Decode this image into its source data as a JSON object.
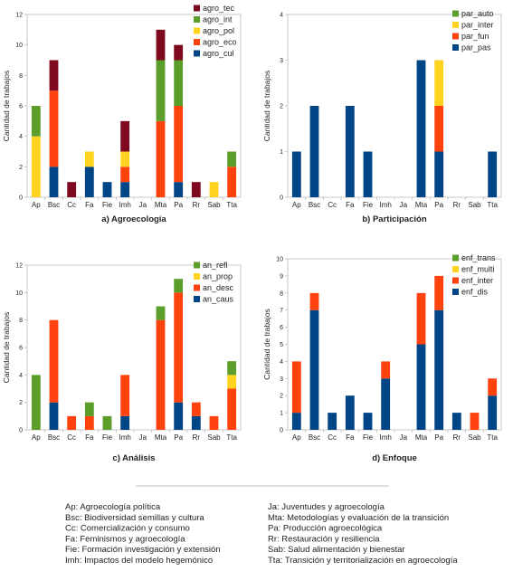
{
  "colors": {
    "tec": "#7f0a1f",
    "int": "#5c9e2c",
    "pol": "#ffd320",
    "eco": "#ff420e",
    "cul": "#004586",
    "auto": "#5c9e2c",
    "inter": "#ffd320",
    "fun": "#ff420e",
    "pas": "#004586",
    "refl": "#5c9e2c",
    "prop": "#ffd320",
    "desc": "#ff420e",
    "caus": "#004586",
    "trans": "#5c9e2c",
    "multi": "#ffd320",
    "einter": "#ff420e",
    "dis": "#004586"
  },
  "chart_data": [
    {
      "type": "bar",
      "stacked": true,
      "title": "a) Agroecología",
      "ylabel": "Cantidad de trabajos",
      "xlabel": "",
      "ylim": [
        0,
        12
      ],
      "yticks": [
        0,
        2,
        4,
        6,
        8,
        10,
        12
      ],
      "grid": false,
      "legend": "top-right",
      "categories": [
        "Ap",
        "Bsc",
        "Cc",
        "Fa",
        "Fie",
        "Imh",
        "Ja",
        "Mta",
        "Pa",
        "Rr",
        "Sab",
        "Tta"
      ],
      "series": [
        {
          "name": "agro_tec",
          "color": "tec",
          "values": [
            0,
            2,
            1,
            0,
            0,
            2,
            0,
            2,
            1,
            1,
            0,
            0
          ]
        },
        {
          "name": "agro_int",
          "color": "int",
          "values": [
            2,
            0,
            0,
            0,
            0,
            0,
            0,
            4,
            3,
            0,
            0,
            1
          ]
        },
        {
          "name": "agro_pol",
          "color": "pol",
          "values": [
            4,
            0,
            0,
            1,
            0,
            1,
            0,
            0,
            0,
            0,
            1,
            0
          ]
        },
        {
          "name": "agro_eco",
          "color": "eco",
          "values": [
            0,
            5,
            0,
            0,
            0,
            1,
            0,
            5,
            5,
            0,
            0,
            2
          ]
        },
        {
          "name": "agro_cul",
          "color": "cul",
          "values": [
            0,
            2,
            0,
            2,
            1,
            1,
            0,
            0,
            1,
            0,
            0,
            0
          ]
        }
      ]
    },
    {
      "type": "bar",
      "stacked": true,
      "title": "b) Participación",
      "ylabel": "Cantidad de trabajos",
      "xlabel": "",
      "ylim": [
        0,
        4
      ],
      "yticks": [
        0,
        1,
        2,
        3,
        4
      ],
      "grid": false,
      "legend": "top-right",
      "categories": [
        "Ap",
        "Bsc",
        "Cc",
        "Fa",
        "Fie",
        "Imh",
        "Ja",
        "Mta",
        "Pa",
        "Rr",
        "Sab",
        "Tta"
      ],
      "series": [
        {
          "name": "par_auto",
          "color": "auto",
          "values": [
            0,
            0,
            0,
            0,
            0,
            0,
            0,
            0,
            0,
            0,
            0,
            0
          ]
        },
        {
          "name": "par_inter",
          "color": "inter",
          "values": [
            0,
            0,
            0,
            0,
            0,
            0,
            0,
            0,
            1,
            0,
            0,
            0
          ]
        },
        {
          "name": "par_fun",
          "color": "fun",
          "values": [
            0,
            0,
            0,
            0,
            0,
            0,
            0,
            0,
            1,
            0,
            0,
            0
          ]
        },
        {
          "name": "par_pas",
          "color": "pas",
          "values": [
            1,
            2,
            0,
            2,
            1,
            0,
            0,
            3,
            1,
            0,
            0,
            1
          ]
        }
      ]
    },
    {
      "type": "bar",
      "stacked": true,
      "title": "c) Análisis",
      "ylabel": "Cantidad de trabajos",
      "xlabel": "",
      "ylim": [
        0,
        12
      ],
      "yticks": [
        0,
        2,
        4,
        6,
        8,
        10,
        12
      ],
      "grid": false,
      "legend": "top-right",
      "categories": [
        "Ap",
        "Bsc",
        "Cc",
        "Fa",
        "Fie",
        "Imh",
        "Ja",
        "Mta",
        "Pa",
        "Rr",
        "Sab",
        "Tta"
      ],
      "series": [
        {
          "name": "an_refl",
          "color": "refl",
          "values": [
            4,
            0,
            0,
            1,
            1,
            0,
            0,
            1,
            1,
            0,
            0,
            1
          ]
        },
        {
          "name": "an_prop",
          "color": "prop",
          "values": [
            0,
            0,
            0,
            0,
            0,
            0,
            0,
            0,
            0,
            0,
            0,
            1
          ]
        },
        {
          "name": "an_desc",
          "color": "desc",
          "values": [
            0,
            6,
            1,
            1,
            0,
            3,
            0,
            8,
            8,
            1,
            1,
            3
          ]
        },
        {
          "name": "an_caus",
          "color": "caus",
          "values": [
            0,
            2,
            0,
            0,
            0,
            1,
            0,
            0,
            2,
            1,
            0,
            0
          ]
        }
      ]
    },
    {
      "type": "bar",
      "stacked": true,
      "title": "d) Enfoque",
      "ylabel": "Cantidad de trabajos",
      "xlabel": "",
      "ylim": [
        0,
        10
      ],
      "yticks": [
        0,
        1,
        2,
        3,
        4,
        5,
        6,
        7,
        8,
        9,
        10
      ],
      "grid": false,
      "legend": "top-right",
      "categories": [
        "Ap",
        "Bsc",
        "Cc",
        "Fa",
        "Fie",
        "Imh",
        "Ja",
        "Mta",
        "Pa",
        "Rr",
        "Sab",
        "Tta"
      ],
      "series": [
        {
          "name": "enf_trans",
          "color": "trans",
          "values": [
            0,
            0,
            0,
            0,
            0,
            0,
            0,
            0,
            0,
            0,
            0,
            0
          ]
        },
        {
          "name": "enf_multi",
          "color": "multi",
          "values": [
            0,
            0,
            0,
            0,
            0,
            0,
            0,
            0,
            0,
            0,
            0,
            0
          ]
        },
        {
          "name": "enf_inter",
          "color": "einter",
          "values": [
            3,
            1,
            0,
            0,
            0,
            1,
            0,
            3,
            2,
            0,
            1,
            1
          ]
        },
        {
          "name": "enf_dis",
          "color": "dis",
          "values": [
            1,
            7,
            1,
            2,
            1,
            3,
            0,
            5,
            7,
            1,
            0,
            2
          ]
        }
      ]
    }
  ],
  "glossary": {
    "left": [
      "Ap: Agroecología política",
      "Bsc: Biodiversidad semillas y cultura",
      "Cc: Comercialización y consumo",
      "Fa: Feminismos y agroecología",
      "Fie: Formación investigación y extensión",
      "Imh: Impactos del modelo hegemónico"
    ],
    "right": [
      "Ja: Juventudes y agroecología",
      "Mta: Metodologías y evaluación de la transición",
      "Pa: Producción agroecológica",
      "Rr: Restauración y resiliencia",
      "Sab: Salud alimentación y bienestar",
      "Tta: Transición y territorialización en agroecología"
    ]
  }
}
